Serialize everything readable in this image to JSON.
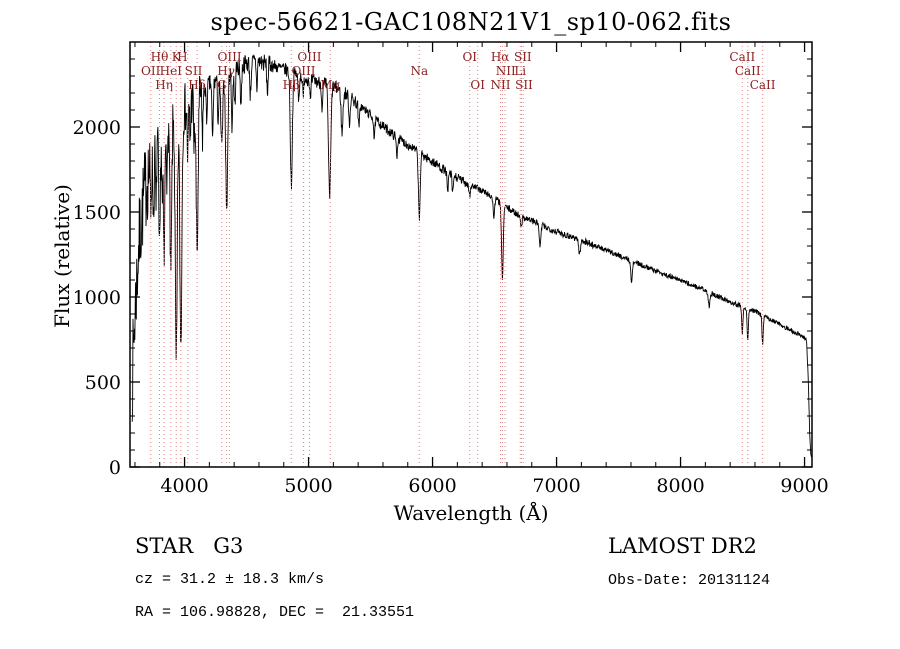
{
  "title": "spec-56621-GAC108N21V1_sp10-062.fits",
  "annotations": {
    "object_type": "STAR   G3",
    "survey": "LAMOST DR2",
    "cz": "cz = 31.2 ± 18.3 km/s",
    "obs_date": "Obs-Date: 20131124",
    "ra_dec": "RA = 106.98828, DEC =  21.33551"
  },
  "colors": {
    "background": "#ffffff",
    "spectrum": "#000000",
    "axis": "#000000",
    "marker_line": "#dd8888",
    "marker_label": "#8b1f1f"
  },
  "chart_data": {
    "type": "line",
    "title": "spec-56621-GAC108N21V1_sp10-062.fits",
    "xlabel": "Wavelength (Å)",
    "ylabel": "Flux (relative)",
    "xlim": [
      3560,
      9060
    ],
    "ylim": [
      0,
      2500
    ],
    "xticks": [
      4000,
      5000,
      6000,
      7000,
      8000,
      9000
    ],
    "yticks": [
      0,
      500,
      1000,
      1500,
      2000
    ],
    "x_minor_step": 200,
    "y_minor_step": 100,
    "grid": false,
    "legend": "none",
    "wl_start": 3578,
    "wl_end": 9056,
    "wl_step": 3,
    "noise_seed": 7,
    "line_markers": [
      3727,
      3798,
      3835,
      3889,
      3933,
      3970,
      4026,
      4101,
      4300,
      4340,
      4363,
      4861,
      4959,
      5007,
      5175,
      5893,
      6300,
      6364,
      6548,
      6563,
      6584,
      6707,
      6717,
      6731,
      8498,
      8542,
      8662
    ],
    "line_labels": [
      {
        "text": "Hθ",
        "wavelength": 3798,
        "row": 1
      },
      {
        "text": "K",
        "wavelength": 3933,
        "row": 1
      },
      {
        "text": "H",
        "wavelength": 3982,
        "row": 1
      },
      {
        "text": "OII",
        "wavelength": 3727,
        "row": 2
      },
      {
        "text": "HeI",
        "wavelength": 3889,
        "row": 2
      },
      {
        "text": "SII",
        "wavelength": 4072,
        "row": 2
      },
      {
        "text": "Hη",
        "wavelength": 3835,
        "row": 3
      },
      {
        "text": "Hδ",
        "wavelength": 4101,
        "row": 3
      },
      {
        "text": "OIII",
        "wavelength": 4363,
        "row": 1
      },
      {
        "text": "Hγ",
        "wavelength": 4335,
        "row": 2
      },
      {
        "text": "G",
        "wavelength": 4300,
        "row": 3
      },
      {
        "text": "OIII",
        "wavelength": 5007,
        "row": 1
      },
      {
        "text": "OIII",
        "wavelength": 4959,
        "row": 2
      },
      {
        "text": "Hβ",
        "wavelength": 4861,
        "row": 3
      },
      {
        "text": "Mg",
        "wavelength": 5175,
        "row": 3
      },
      {
        "text": "Na",
        "wavelength": 5893,
        "row": 2
      },
      {
        "text": "OI",
        "wavelength": 6300,
        "row": 1
      },
      {
        "text": "OI",
        "wavelength": 6364,
        "row": 3
      },
      {
        "text": "Hα",
        "wavelength": 6545,
        "row": 1
      },
      {
        "text": "SII",
        "wavelength": 6728,
        "row": 1
      },
      {
        "text": "NII",
        "wavelength": 6590,
        "row": 2
      },
      {
        "text": "Li",
        "wavelength": 6707,
        "row": 2
      },
      {
        "text": "NII",
        "wavelength": 6548,
        "row": 3
      },
      {
        "text": "SII",
        "wavelength": 6737,
        "row": 3
      },
      {
        "text": "CaII",
        "wavelength": 8498,
        "row": 1
      },
      {
        "text": "CaII",
        "wavelength": 8542,
        "row": 2
      },
      {
        "text": "CaII",
        "wavelength": 8662,
        "row": 3
      }
    ],
    "continuum_points": [
      [
        3578,
        520
      ],
      [
        3600,
        900
      ],
      [
        3630,
        1300
      ],
      [
        3670,
        1580
      ],
      [
        3720,
        1780
      ],
      [
        3780,
        1950
      ],
      [
        3850,
        2030
      ],
      [
        3930,
        2070
      ],
      [
        4000,
        2110
      ],
      [
        4100,
        2180
      ],
      [
        4200,
        2250
      ],
      [
        4300,
        2290
      ],
      [
        4400,
        2340
      ],
      [
        4500,
        2375
      ],
      [
        4600,
        2385
      ],
      [
        4700,
        2365
      ],
      [
        4800,
        2340
      ],
      [
        4900,
        2310
      ],
      [
        5000,
        2280
      ],
      [
        5100,
        2260
      ],
      [
        5200,
        2240
      ],
      [
        5300,
        2195
      ],
      [
        5400,
        2135
      ],
      [
        5500,
        2070
      ],
      [
        5600,
        2005
      ],
      [
        5700,
        1945
      ],
      [
        5800,
        1895
      ],
      [
        5900,
        1845
      ],
      [
        6000,
        1795
      ],
      [
        6100,
        1745
      ],
      [
        6200,
        1700
      ],
      [
        6300,
        1660
      ],
      [
        6400,
        1625
      ],
      [
        6500,
        1580
      ],
      [
        6600,
        1525
      ],
      [
        6700,
        1480
      ],
      [
        6800,
        1450
      ],
      [
        6900,
        1415
      ],
      [
        7000,
        1385
      ],
      [
        7100,
        1360
      ],
      [
        7200,
        1335
      ],
      [
        7300,
        1305
      ],
      [
        7400,
        1275
      ],
      [
        7500,
        1245
      ],
      [
        7600,
        1215
      ],
      [
        7700,
        1185
      ],
      [
        7800,
        1155
      ],
      [
        7900,
        1125
      ],
      [
        8000,
        1098
      ],
      [
        8100,
        1068
      ],
      [
        8200,
        1038
      ],
      [
        8300,
        1005
      ],
      [
        8400,
        972
      ],
      [
        8500,
        945
      ],
      [
        8600,
        915
      ],
      [
        8700,
        878
      ],
      [
        8800,
        840
      ],
      [
        8900,
        800
      ],
      [
        8980,
        770
      ],
      [
        9015,
        750
      ],
      [
        9030,
        520
      ],
      [
        9042,
        180
      ],
      [
        9052,
        60
      ]
    ],
    "absorption_lines": [
      [
        3727,
        250,
        6
      ],
      [
        3750,
        380,
        5
      ],
      [
        3770,
        460,
        4
      ],
      [
        3798,
        760,
        6
      ],
      [
        3820,
        420,
        4
      ],
      [
        3835,
        820,
        6
      ],
      [
        3860,
        380,
        4
      ],
      [
        3889,
        950,
        7
      ],
      [
        3933,
        1500,
        8
      ],
      [
        3970,
        1380,
        8
      ],
      [
        4026,
        300,
        5
      ],
      [
        4045,
        220,
        4
      ],
      [
        4077,
        280,
        4
      ],
      [
        4101,
        920,
        8
      ],
      [
        4144,
        260,
        5
      ],
      [
        4178,
        200,
        4
      ],
      [
        4226,
        340,
        5
      ],
      [
        4271,
        240,
        5
      ],
      [
        4300,
        400,
        8
      ],
      [
        4340,
        800,
        8
      ],
      [
        4383,
        330,
        5
      ],
      [
        4405,
        220,
        5
      ],
      [
        4455,
        230,
        5
      ],
      [
        4531,
        190,
        5
      ],
      [
        4583,
        160,
        4
      ],
      [
        4668,
        170,
        5
      ],
      [
        4861,
        660,
        8
      ],
      [
        4920,
        150,
        5
      ],
      [
        4957,
        130,
        4
      ],
      [
        5015,
        140,
        4
      ],
      [
        5110,
        160,
        5
      ],
      [
        5170,
        660,
        9
      ],
      [
        5270,
        250,
        7
      ],
      [
        5330,
        160,
        5
      ],
      [
        5406,
        140,
        5
      ],
      [
        5530,
        120,
        5
      ],
      [
        5712,
        110,
        5
      ],
      [
        5893,
        390,
        7
      ],
      [
        6122,
        130,
        5
      ],
      [
        6162,
        110,
        5
      ],
      [
        6300,
        70,
        5
      ],
      [
        6494,
        110,
        6
      ],
      [
        6563,
        430,
        7
      ],
      [
        6717,
        70,
        5
      ],
      [
        6867,
        140,
        6
      ],
      [
        7186,
        90,
        7
      ],
      [
        7605,
        120,
        7
      ],
      [
        8230,
        80,
        8
      ],
      [
        8498,
        155,
        5
      ],
      [
        8542,
        195,
        5
      ],
      [
        8662,
        175,
        5
      ]
    ],
    "noise_segments": [
      [
        3578,
        3730,
        260
      ],
      [
        3730,
        4150,
        150
      ],
      [
        4150,
        4700,
        55
      ],
      [
        4700,
        5400,
        40
      ],
      [
        5400,
        6300,
        28
      ],
      [
        6300,
        7300,
        20
      ],
      [
        7300,
        8500,
        15
      ],
      [
        8500,
        9020,
        13
      ],
      [
        9020,
        9060,
        8
      ]
    ]
  }
}
